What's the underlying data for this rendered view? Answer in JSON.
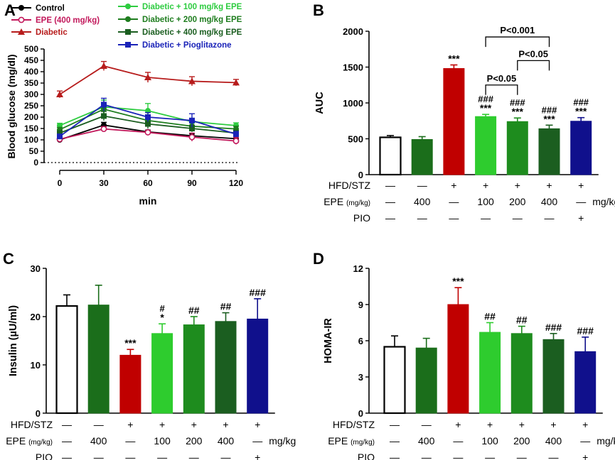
{
  "chart_data": [
    {
      "panel": "A",
      "type": "line",
      "xlabel": "min",
      "ylabel": "Blood glucose (mg/dl)",
      "x": [
        0,
        30,
        60,
        90,
        120
      ],
      "xticks": [
        "0",
        "30",
        "60",
        "90",
        "120"
      ],
      "ylim": [
        0,
        500
      ],
      "yticks": [
        "0",
        "50",
        "100",
        "150",
        "200",
        "250",
        "300",
        "350",
        "400",
        "450",
        "500"
      ],
      "series": [
        {
          "name": "Control",
          "color": "#000000",
          "marker": "circle-filled",
          "values": [
            100,
            165,
            135,
            118,
            105
          ],
          "errors": [
            8,
            12,
            8,
            10,
            10
          ]
        },
        {
          "name": "EPE (400 mg/kg)",
          "color": "#c2185b",
          "marker": "circle-open",
          "values": [
            103,
            148,
            133,
            112,
            95
          ],
          "errors": [
            8,
            10,
            8,
            18,
            15
          ]
        },
        {
          "name": "Diabetic",
          "color": "#b71c1c",
          "marker": "triangle",
          "values": [
            300,
            425,
            375,
            358,
            352
          ],
          "errors": [
            15,
            20,
            22,
            20,
            14
          ]
        },
        {
          "name": "Diabetic + 100 mg/kg EPE",
          "color": "#2ecc40",
          "marker": "circle-filled",
          "values": [
            163,
            245,
            228,
            180,
            163
          ],
          "errors": [
            10,
            30,
            32,
            15,
            12
          ]
        },
        {
          "name": "Diabetic + 200 mg/kg EPE",
          "color": "#1e7d1e",
          "marker": "circle-filled",
          "values": [
            145,
            235,
            185,
            160,
            148
          ],
          "errors": [
            10,
            25,
            25,
            15,
            12
          ]
        },
        {
          "name": "Diabetic + 400 mg/kg EPE",
          "color": "#1b5e20",
          "marker": "square",
          "values": [
            130,
            205,
            170,
            150,
            130
          ],
          "errors": [
            10,
            20,
            20,
            15,
            12
          ]
        },
        {
          "name": "Diabetic + Pioglitazone",
          "color": "#1a23b8",
          "marker": "square",
          "values": [
            115,
            255,
            200,
            185,
            125
          ],
          "errors": [
            10,
            28,
            20,
            30,
            12
          ]
        }
      ]
    },
    {
      "panel": "B",
      "type": "bar",
      "ylabel": "AUC",
      "ylim": [
        0,
        2000
      ],
      "yticks": [
        "0",
        "500",
        "1000",
        "1500",
        "2000"
      ],
      "values": [
        520,
        490,
        1480,
        810,
        740,
        640,
        745
      ],
      "errors": [
        25,
        40,
        50,
        30,
        50,
        50,
        50
      ],
      "annotations": [
        [
          "",
          ""
        ],
        [
          "",
          ""
        ],
        [
          "",
          "***"
        ],
        [
          "###",
          "***"
        ],
        [
          "###",
          "***"
        ],
        [
          "###",
          "***"
        ],
        [
          "###",
          "***"
        ]
      ],
      "comparisons": [
        {
          "label": "P<0.001",
          "from": 3,
          "to": 5,
          "level": 1920
        },
        {
          "label": "P<0.05",
          "from": 4,
          "to": 5,
          "level": 1590
        },
        {
          "label": "P<0.05",
          "from": 3,
          "to": 4,
          "level": 1250
        }
      ]
    },
    {
      "panel": "C",
      "type": "bar",
      "ylabel": "Insulin (µU/ml)",
      "ylim": [
        0,
        30
      ],
      "yticks": [
        "0",
        "10",
        "20",
        "30"
      ],
      "values": [
        22.2,
        22.4,
        12.0,
        16.5,
        18.3,
        19.0,
        19.5
      ],
      "errors": [
        2.3,
        4.1,
        1.2,
        2.0,
        1.7,
        1.8,
        4.2
      ],
      "annotations": [
        [
          "",
          ""
        ],
        [
          "",
          ""
        ],
        [
          "",
          "***"
        ],
        [
          "#",
          "*"
        ],
        [
          "",
          "##"
        ],
        [
          "",
          "##"
        ],
        [
          "",
          "###"
        ]
      ]
    },
    {
      "panel": "D",
      "type": "bar",
      "ylabel": "HOMA-IR",
      "ylim": [
        0,
        12
      ],
      "yticks": [
        "0",
        "3",
        "6",
        "9",
        "12"
      ],
      "values": [
        5.5,
        5.4,
        9.0,
        6.7,
        6.6,
        6.1,
        5.1
      ],
      "errors": [
        0.9,
        0.8,
        1.4,
        0.8,
        0.6,
        0.5,
        1.2
      ],
      "annotations": [
        [
          "",
          ""
        ],
        [
          "",
          ""
        ],
        [
          "",
          "***"
        ],
        [
          "",
          "##"
        ],
        [
          "",
          "##"
        ],
        [
          "",
          "###"
        ],
        [
          "",
          "###"
        ]
      ]
    }
  ],
  "bar_colors": [
    "#ffffff",
    "#1b6e1b",
    "#c00000",
    "#2ecc2e",
    "#1e8c1e",
    "#1b5e20",
    "#10108c"
  ],
  "treatment_table": {
    "row1_label": "HFD/STZ",
    "row1": [
      "—",
      "—",
      "+",
      "+",
      "+",
      "+",
      "+"
    ],
    "row2_label": "EPE",
    "row2_unit": "(mg/kg)",
    "row2": [
      "—",
      "400",
      "—",
      "100",
      "200",
      "400",
      "—"
    ],
    "row2_suffix": "mg/kg",
    "row3_label": "PIO",
    "row3": [
      "—",
      "—",
      "—",
      "—",
      "—",
      "—",
      "+"
    ]
  },
  "panel_letters": [
    "A",
    "B",
    "C",
    "D"
  ]
}
